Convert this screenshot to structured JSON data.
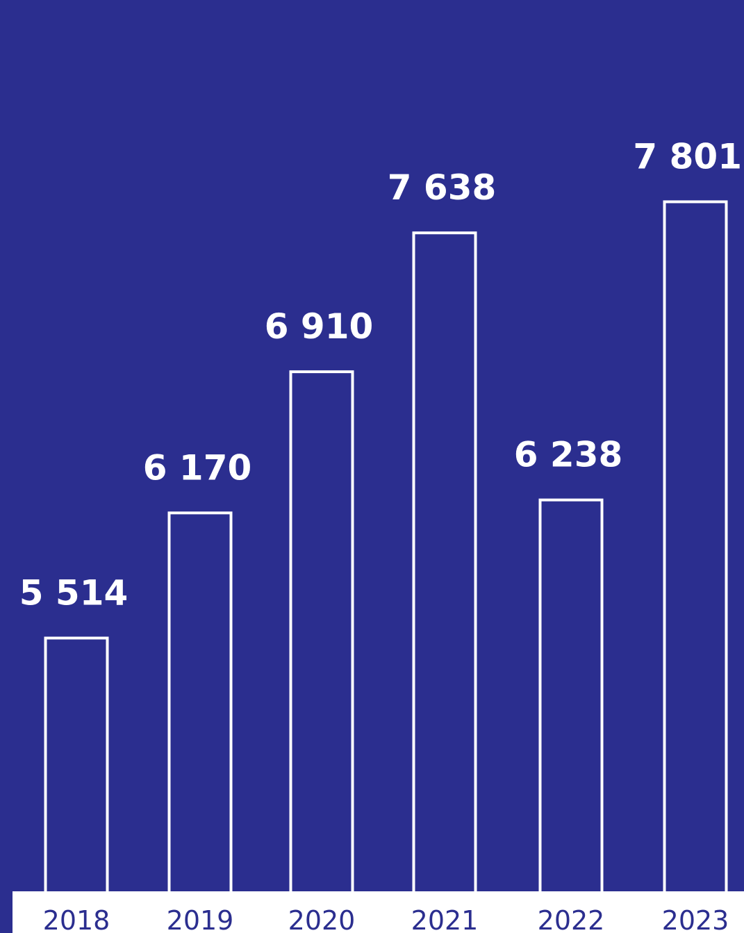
{
  "colors": {
    "background": "#2b2e8f",
    "bar_outline": "#ffffff",
    "axis_band": "#ffffff",
    "tick_text": "#2b2e8f",
    "value_text": "#ffffff"
  },
  "chart_data": {
    "type": "bar",
    "categories": [
      "2018",
      "2019",
      "2020",
      "2021",
      "2022",
      "2023"
    ],
    "values": [
      5514,
      6170,
      6910,
      7638,
      6238,
      7801
    ],
    "value_labels": [
      "5 514",
      "6 170",
      "6 910",
      "7 638",
      "6 238",
      "7 801"
    ],
    "title": "",
    "xlabel": "",
    "ylabel": "",
    "grid": false,
    "legend": "none",
    "bar_style": "outline"
  }
}
